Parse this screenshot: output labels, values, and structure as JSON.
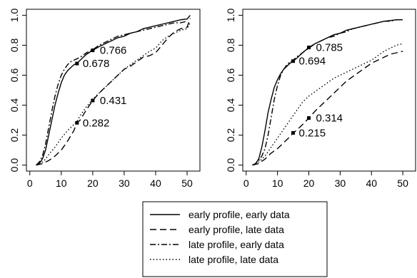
{
  "chart_data": [
    {
      "type": "line",
      "xlim": [
        0,
        52
      ],
      "ylim": [
        0,
        1
      ],
      "xticks": [
        0,
        10,
        20,
        30,
        40,
        50
      ],
      "yticks": [
        0.0,
        0.2,
        0.4,
        0.6,
        0.8,
        1.0
      ],
      "xtick_labels": [
        "0",
        "10",
        "20",
        "30",
        "40",
        "50"
      ],
      "ytick_labels": [
        "0.0",
        "0.2",
        "0.4",
        "0.6",
        "0.8",
        "1.0"
      ],
      "series": [
        {
          "key": "ee",
          "x": [
            2,
            3,
            4,
            5,
            6,
            7,
            8,
            9,
            10,
            11,
            12,
            13,
            14,
            15,
            16,
            18,
            20,
            22,
            24,
            26,
            28,
            30,
            32,
            34,
            36,
            38,
            40,
            42,
            44,
            46,
            48,
            50,
            51
          ],
          "y": [
            0,
            0.01,
            0.04,
            0.1,
            0.2,
            0.3,
            0.4,
            0.48,
            0.55,
            0.6,
            0.63,
            0.65,
            0.67,
            0.678,
            0.7,
            0.74,
            0.766,
            0.79,
            0.81,
            0.83,
            0.85,
            0.86,
            0.88,
            0.89,
            0.91,
            0.92,
            0.93,
            0.94,
            0.95,
            0.96,
            0.97,
            0.975,
            1.0
          ]
        },
        {
          "key": "el",
          "x": [
            2,
            4,
            5,
            6,
            8,
            10,
            12,
            14,
            15,
            16,
            18,
            20,
            22,
            24,
            26,
            28,
            30,
            32,
            34,
            36,
            38,
            40,
            42,
            44,
            46,
            48,
            50,
            51
          ],
          "y": [
            0,
            0.01,
            0.02,
            0.03,
            0.06,
            0.1,
            0.16,
            0.23,
            0.282,
            0.3,
            0.37,
            0.431,
            0.48,
            0.52,
            0.56,
            0.6,
            0.64,
            0.66,
            0.69,
            0.72,
            0.73,
            0.75,
            0.8,
            0.85,
            0.89,
            0.91,
            0.92,
            0.98
          ]
        },
        {
          "key": "le",
          "x": [
            2,
            3,
            4,
            5,
            6,
            7,
            8,
            9,
            10,
            11,
            12,
            13,
            14,
            15,
            16,
            18,
            20,
            22,
            24,
            26,
            28,
            30,
            32,
            34,
            36,
            38,
            40,
            42,
            44,
            46,
            48,
            50
          ],
          "y": [
            0,
            0.02,
            0.06,
            0.14,
            0.25,
            0.36,
            0.46,
            0.54,
            0.6,
            0.64,
            0.67,
            0.69,
            0.7,
            0.71,
            0.72,
            0.75,
            0.77,
            0.8,
            0.82,
            0.84,
            0.86,
            0.87,
            0.88,
            0.89,
            0.9,
            0.91,
            0.92,
            0.93,
            0.94,
            0.95,
            0.95,
            0.96
          ]
        },
        {
          "key": "ll",
          "x": [
            2,
            4,
            5,
            6,
            8,
            10,
            12,
            14,
            15,
            16,
            18,
            20,
            22,
            24,
            26,
            28,
            30,
            32,
            34,
            36,
            38,
            40,
            42,
            44,
            46,
            48,
            50,
            51
          ],
          "y": [
            0,
            0.02,
            0.04,
            0.07,
            0.12,
            0.18,
            0.23,
            0.27,
            0.29,
            0.33,
            0.39,
            0.44,
            0.48,
            0.52,
            0.56,
            0.6,
            0.64,
            0.67,
            0.7,
            0.73,
            0.76,
            0.78,
            0.83,
            0.86,
            0.88,
            0.9,
            0.91,
            0.95
          ]
        }
      ],
      "markers": [
        {
          "x": 15,
          "y": 0.678,
          "label": "0.678"
        },
        {
          "x": 20,
          "y": 0.766,
          "label": "0.766"
        },
        {
          "x": 20,
          "y": 0.431,
          "label": "0.431"
        },
        {
          "x": 15,
          "y": 0.282,
          "label": "0.282"
        }
      ]
    },
    {
      "type": "line",
      "xlim": [
        0,
        52
      ],
      "ylim": [
        0,
        1
      ],
      "xticks": [
        0,
        10,
        20,
        30,
        40,
        50
      ],
      "yticks": [
        0.0,
        0.2,
        0.4,
        0.6,
        0.8,
        1.0
      ],
      "xtick_labels": [
        "0",
        "10",
        "20",
        "30",
        "40",
        "50"
      ],
      "ytick_labels": [
        "0.0",
        "0.2",
        "0.4",
        "0.6",
        "0.8",
        "1.0"
      ],
      "series": [
        {
          "key": "ee",
          "x": [
            2,
            3,
            4,
            5,
            6,
            7,
            8,
            9,
            10,
            11,
            12,
            13,
            14,
            15,
            16,
            18,
            20,
            22,
            24,
            26,
            28,
            30,
            32,
            34,
            36,
            38,
            40,
            42,
            44,
            46,
            48,
            50
          ],
          "y": [
            0,
            0.01,
            0.04,
            0.12,
            0.23,
            0.35,
            0.44,
            0.52,
            0.57,
            0.61,
            0.64,
            0.66,
            0.68,
            0.694,
            0.71,
            0.75,
            0.785,
            0.81,
            0.83,
            0.85,
            0.87,
            0.88,
            0.9,
            0.91,
            0.92,
            0.93,
            0.94,
            0.95,
            0.96,
            0.965,
            0.97,
            0.97
          ]
        },
        {
          "key": "el",
          "x": [
            2,
            4,
            6,
            8,
            10,
            12,
            14,
            15,
            16,
            18,
            20,
            22,
            24,
            26,
            28,
            30,
            32,
            34,
            36,
            38,
            40,
            42,
            44,
            46,
            48,
            50
          ],
          "y": [
            0,
            0.01,
            0.04,
            0.08,
            0.11,
            0.15,
            0.19,
            0.215,
            0.23,
            0.27,
            0.314,
            0.36,
            0.4,
            0.44,
            0.48,
            0.52,
            0.56,
            0.59,
            0.62,
            0.65,
            0.68,
            0.7,
            0.72,
            0.74,
            0.75,
            0.76
          ]
        },
        {
          "key": "le",
          "x": [
            2,
            3,
            4,
            5,
            6,
            7,
            8,
            9,
            10,
            11,
            12,
            13,
            14,
            15,
            16,
            18,
            20,
            22,
            24,
            26,
            28,
            30,
            32,
            34,
            36,
            38,
            40,
            42,
            44,
            46,
            48,
            50
          ],
          "y": [
            0,
            0.01,
            0.03,
            0.06,
            0.11,
            0.2,
            0.32,
            0.44,
            0.53,
            0.6,
            0.64,
            0.67,
            0.69,
            0.7,
            0.72,
            0.75,
            0.78,
            0.81,
            0.83,
            0.85,
            0.86,
            0.88,
            0.89,
            0.91,
            0.92,
            0.93,
            0.94,
            0.95,
            0.96,
            0.96,
            0.97,
            0.97
          ]
        },
        {
          "key": "ll",
          "x": [
            2,
            4,
            6,
            8,
            10,
            12,
            14,
            15,
            16,
            18,
            20,
            22,
            24,
            26,
            28,
            30,
            32,
            34,
            36,
            38,
            40,
            42,
            44,
            46,
            48,
            50
          ],
          "y": [
            0,
            0.02,
            0.06,
            0.12,
            0.18,
            0.24,
            0.3,
            0.33,
            0.36,
            0.42,
            0.46,
            0.49,
            0.52,
            0.55,
            0.58,
            0.6,
            0.62,
            0.64,
            0.66,
            0.68,
            0.7,
            0.73,
            0.76,
            0.78,
            0.8,
            0.81
          ]
        }
      ],
      "markers": [
        {
          "x": 15,
          "y": 0.694,
          "label": "0.694"
        },
        {
          "x": 20,
          "y": 0.785,
          "label": "0.785"
        },
        {
          "x": 20,
          "y": 0.314,
          "label": "0.314"
        },
        {
          "x": 15,
          "y": 0.215,
          "label": "0.215"
        }
      ]
    }
  ],
  "legend": {
    "placement": "bottom-center",
    "entries": [
      {
        "key": "ee",
        "label": "early profile, early data"
      },
      {
        "key": "el",
        "label": "early profile, late data"
      },
      {
        "key": "le",
        "label": "late profile, early data"
      },
      {
        "key": "ll",
        "label": "late profile, late data"
      }
    ]
  },
  "line_styles": {
    "ee": {
      "style": "solid",
      "color": "#000000"
    },
    "el": {
      "style": "dashed",
      "color": "#000000"
    },
    "le": {
      "style": "dot-dash",
      "color": "#000000"
    },
    "ll": {
      "style": "dotted",
      "color": "#000000"
    }
  }
}
